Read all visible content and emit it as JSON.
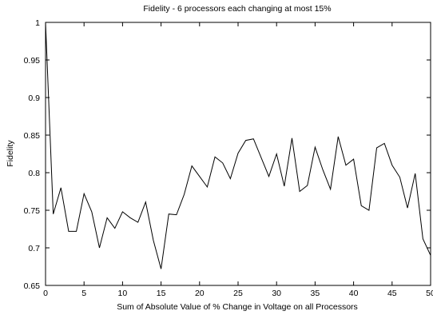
{
  "chart_data": {
    "type": "line",
    "title": "Fidelity - 6 processors each changing at most 15%",
    "xlabel": "Sum of Absolute Value of % Change in Voltage on all Processors",
    "ylabel": "Fidelity",
    "xlim": [
      0,
      50
    ],
    "ylim": [
      0.65,
      1
    ],
    "xticks": [
      0,
      5,
      10,
      15,
      20,
      25,
      30,
      35,
      40,
      45,
      50
    ],
    "xtick_labels": [
      "0",
      "5",
      "10",
      "15",
      "20",
      "25",
      "30",
      "35",
      "40",
      "45",
      "50"
    ],
    "yticks": [
      0.65,
      0.7,
      0.75,
      0.8,
      0.85,
      0.9,
      0.95,
      1
    ],
    "ytick_labels": [
      "0.65",
      "0.7",
      "0.75",
      "0.8",
      "0.85",
      "0.9",
      "0.95",
      "1"
    ],
    "grid": false,
    "legend": "none",
    "line_color": "#000000",
    "series": [
      {
        "x": [
          0,
          1,
          2,
          3,
          4,
          5,
          6,
          7,
          8,
          9,
          10,
          11,
          12,
          13,
          14,
          15,
          16,
          17,
          18,
          19,
          20,
          21,
          22,
          23,
          24,
          25,
          26,
          27,
          28,
          29,
          30,
          31,
          32,
          33,
          34,
          35,
          36,
          37,
          38,
          39,
          40,
          41,
          42,
          43,
          44,
          45,
          46,
          47,
          48,
          49,
          50
        ],
        "values": [
          1.0,
          0.745,
          0.78,
          0.722,
          0.722,
          0.772,
          0.748,
          0.7,
          0.74,
          0.726,
          0.748,
          0.74,
          0.734,
          0.761,
          0.71,
          0.672,
          0.745,
          0.744,
          0.771,
          0.809,
          0.795,
          0.781,
          0.821,
          0.813,
          0.792,
          0.826,
          0.843,
          0.845,
          0.82,
          0.795,
          0.825,
          0.782,
          0.846,
          0.775,
          0.783,
          0.834,
          0.804,
          0.778,
          0.848,
          0.81,
          0.818,
          0.756,
          0.75,
          0.833,
          0.839,
          0.81,
          0.794,
          0.753,
          0.799,
          0.712,
          0.69
        ]
      }
    ]
  }
}
